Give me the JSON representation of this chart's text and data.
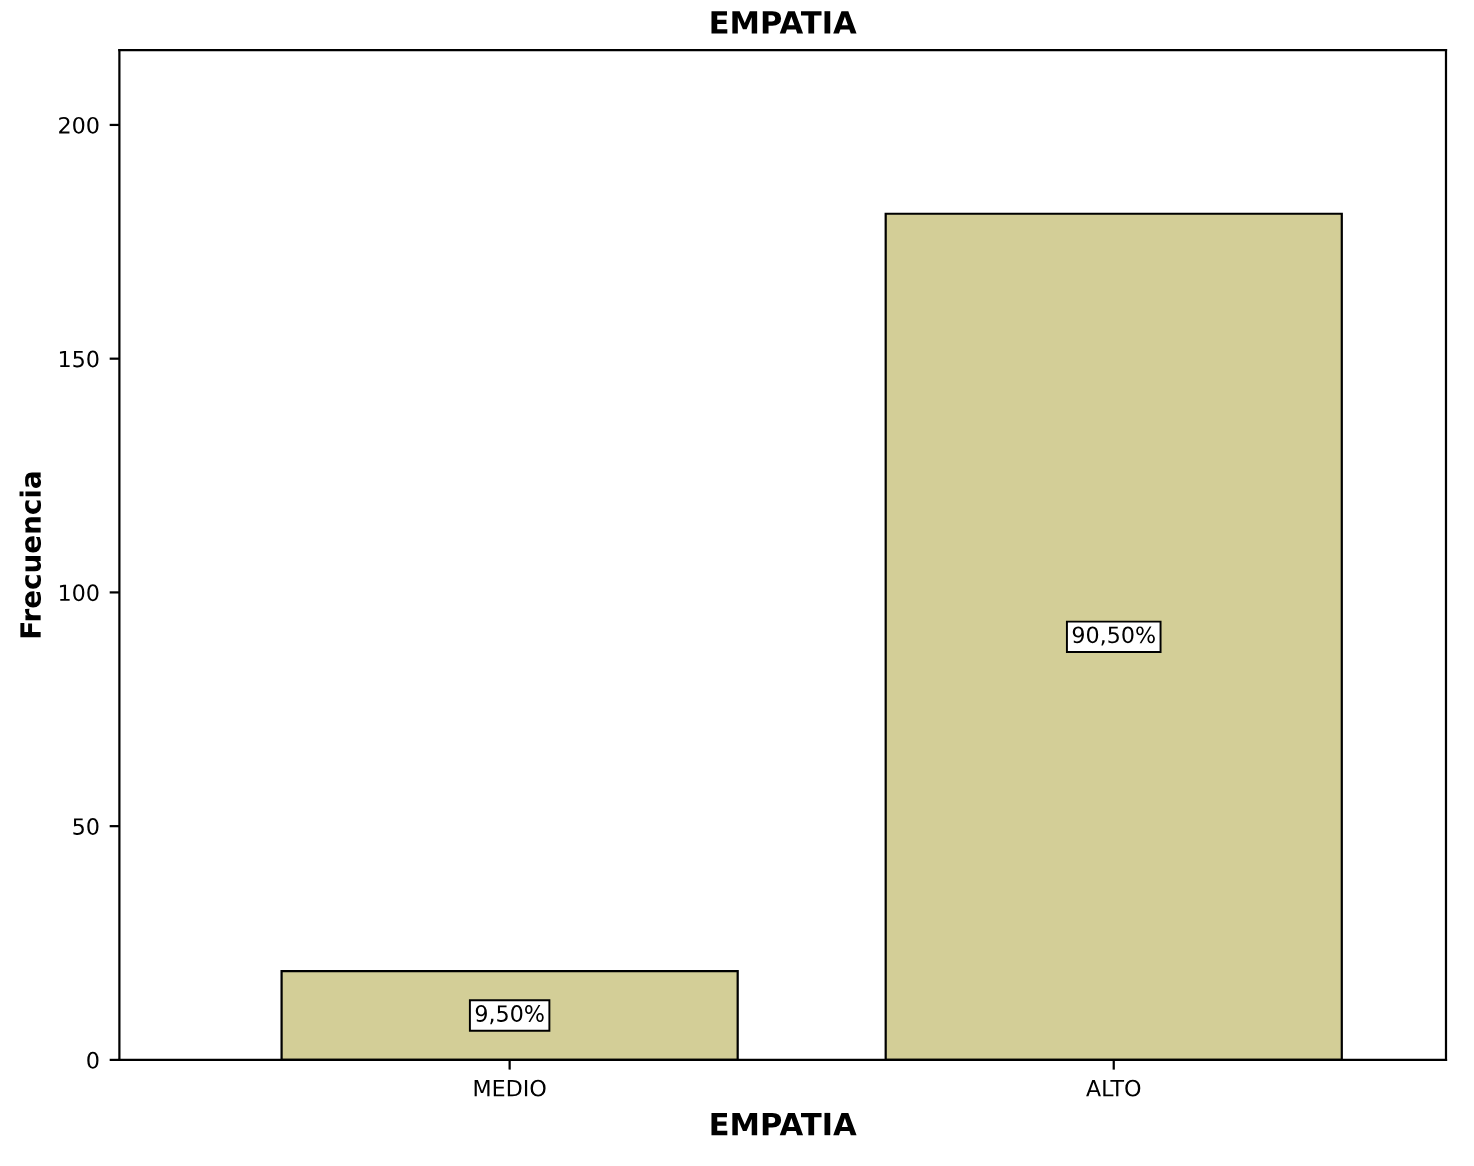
{
  "chart_data": {
    "type": "bar",
    "title": "EMPATIA",
    "xlabel": "EMPATIA",
    "ylabel": "Frecuencia",
    "categories": [
      "MEDIO",
      "ALTO"
    ],
    "values": [
      19,
      181
    ],
    "annotations": [
      "9,50%",
      "90,50%"
    ],
    "color": "#d3ce97",
    "ylim": [
      0,
      216
    ],
    "yticks": [
      0,
      50,
      100,
      150,
      200
    ],
    "grid": false
  }
}
